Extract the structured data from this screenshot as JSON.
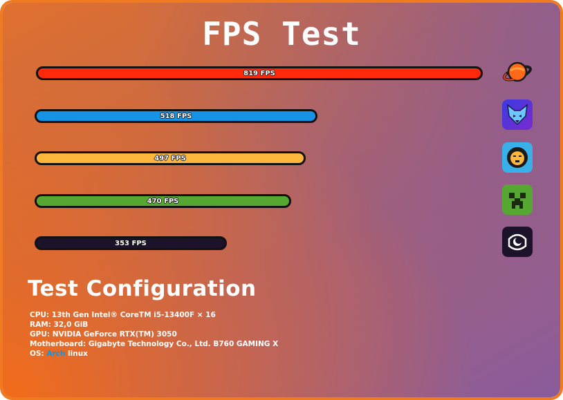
{
  "title": "FPS Test",
  "chart_data": {
    "type": "bar",
    "orientation": "horizontal",
    "unit": "FPS",
    "max_value": 819,
    "bars": [
      {
        "value": 819,
        "label": "819 FPS",
        "color": "#ff2a0a",
        "icon": "planet-icon"
      },
      {
        "value": 518,
        "label": "518 FPS",
        "color": "#1793e6",
        "icon": "wolf-icon"
      },
      {
        "value": 497,
        "label": "497 FPS",
        "color": "#ffb63c",
        "icon": "lion-icon"
      },
      {
        "value": 470,
        "label": "470 FPS",
        "color": "#56a832",
        "icon": "creeper-icon"
      },
      {
        "value": 353,
        "label": "353 FPS",
        "color": "#1c1229",
        "icon": "moon-logo-icon"
      }
    ]
  },
  "config": {
    "title": "Test Configuration",
    "cpu": "CPU: 13th Gen Intel® CoreTM i5-13400F × 16",
    "ram": "RAM: 32,0 GiB",
    "gpu": "GPU: NVIDIA GeForce RTX(TM) 3050",
    "motherboard": "Motherboard: Gigabyte Technology Co., Ltd. B760 GAMING X",
    "os_prefix": "OS: ",
    "os_arch": "Arch",
    "os_suffix": " linux"
  }
}
